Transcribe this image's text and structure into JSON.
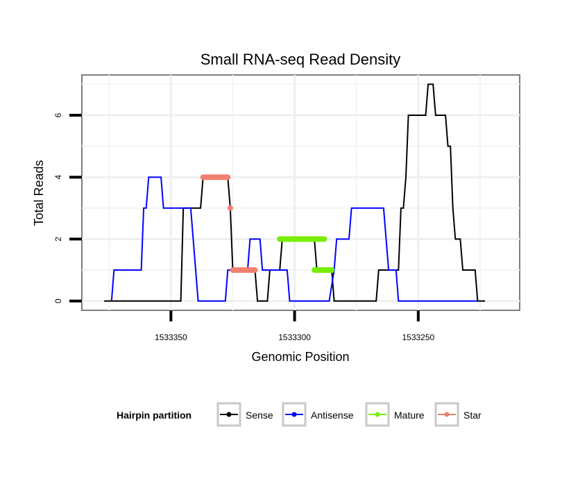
{
  "chart_data": {
    "type": "line",
    "title": "Small RNA-seq Read Density",
    "xlabel": "Genomic Position",
    "ylabel": "Total Reads",
    "x_reversed": true,
    "xlim": [
      1533386,
      1533209
    ],
    "ylim": [
      -0.3,
      7.3
    ],
    "x_ticks": [
      1533350,
      1533300,
      1533250
    ],
    "x_tick_labels": [
      "1533350",
      "1533300",
      "1533250"
    ],
    "y_ticks": [
      0,
      2,
      4,
      6
    ],
    "y_tick_labels": [
      "0",
      "2",
      "4",
      "6"
    ],
    "grid": true,
    "legend": {
      "title": "Hairpin partition",
      "placement": "bottom",
      "entries": [
        {
          "label": "Sense",
          "color": "#000000"
        },
        {
          "label": "Antisense",
          "color": "#0000ff"
        },
        {
          "label": "Mature",
          "color": "#77ee00"
        },
        {
          "label": "Star",
          "color": "#f08070"
        }
      ]
    },
    "series": [
      {
        "name": "Sense",
        "color": "#000000",
        "style": "line",
        "points": [
          [
            1533377,
            0
          ],
          [
            1533346,
            0
          ],
          [
            1533345,
            3
          ],
          [
            1533338,
            3
          ],
          [
            1533337,
            4
          ],
          [
            1533327,
            4
          ],
          [
            1533326,
            3
          ],
          [
            1533325,
            1
          ],
          [
            1533316,
            1
          ],
          [
            1533315,
            0
          ],
          [
            1533311,
            0
          ],
          [
            1533310,
            1
          ],
          [
            1533306,
            1
          ],
          [
            1533305,
            2
          ],
          [
            1533292,
            2
          ],
          [
            1533291,
            1
          ],
          [
            1533285,
            1
          ],
          [
            1533284,
            0
          ],
          [
            1533267,
            0
          ],
          [
            1533266,
            1
          ],
          [
            1533258,
            1
          ],
          [
            1533257,
            3
          ],
          [
            1533256,
            3
          ],
          [
            1533255,
            4
          ],
          [
            1533254,
            6
          ],
          [
            1533247,
            6
          ],
          [
            1533246,
            7
          ],
          [
            1533244,
            7
          ],
          [
            1533243,
            6
          ],
          [
            1533239,
            6
          ],
          [
            1533238,
            5
          ],
          [
            1533237,
            5
          ],
          [
            1533236,
            3
          ],
          [
            1533235,
            2
          ],
          [
            1533233,
            2
          ],
          [
            1533232,
            1
          ],
          [
            1533227,
            1
          ],
          [
            1533226,
            0
          ],
          [
            1533223,
            0
          ]
        ]
      },
      {
        "name": "Antisense",
        "color": "#0000ff",
        "style": "line",
        "points": [
          [
            1533374,
            0
          ],
          [
            1533373,
            1
          ],
          [
            1533362,
            1
          ],
          [
            1533361,
            3
          ],
          [
            1533360,
            3
          ],
          [
            1533359,
            4
          ],
          [
            1533354,
            4
          ],
          [
            1533353,
            3
          ],
          [
            1533342,
            3
          ],
          [
            1533340,
            1
          ],
          [
            1533339,
            0
          ],
          [
            1533328,
            0
          ],
          [
            1533327,
            1
          ],
          [
            1533319,
            1
          ],
          [
            1533318,
            2
          ],
          [
            1533314,
            2
          ],
          [
            1533313,
            1
          ],
          [
            1533303,
            1
          ],
          [
            1533302,
            0
          ],
          [
            1533286,
            0
          ],
          [
            1533284,
            1
          ],
          [
            1533283,
            2
          ],
          [
            1533278,
            2
          ],
          [
            1533277,
            3
          ],
          [
            1533264,
            3
          ],
          [
            1533262,
            1
          ],
          [
            1533259,
            1
          ],
          [
            1533258,
            0
          ],
          [
            1533226,
            0
          ]
        ]
      },
      {
        "name": "Mature",
        "color": "#77ee00",
        "style": "segment",
        "points": [
          [
            1533306,
            2
          ],
          [
            1533288,
            2
          ],
          [
            1533292,
            1
          ],
          [
            1533285,
            1
          ]
        ]
      },
      {
        "name": "Star",
        "color": "#f08070",
        "style": "segment",
        "points": [
          [
            1533337,
            4
          ],
          [
            1533327,
            4
          ],
          [
            1533326,
            3
          ],
          [
            1533326,
            3
          ],
          [
            1533325,
            1
          ],
          [
            1533316,
            1
          ]
        ]
      }
    ]
  }
}
